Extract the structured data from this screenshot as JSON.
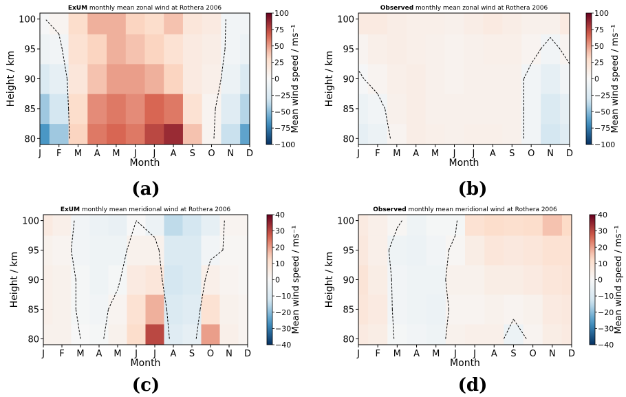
{
  "colors": {
    "neg_dark": "#053061",
    "neg_mid": "#4393c3",
    "neg_light": "#d1e5f0",
    "neutral": "#f7f7f7",
    "pos_light": "#fddbc7",
    "pos_mid": "#d6604d",
    "pos_dark": "#67001f",
    "contour": "#000000"
  },
  "chart_data": [
    {
      "type": "heatmap",
      "panel_label": "(a)",
      "title_bold": "ExUM",
      "title_rest": " monthly mean zonal wind at Rothera 2006",
      "xlabel": "Month",
      "ylabel": "Height / km",
      "cbar_label": "Mean wind speed / ms⁻¹",
      "x_ticks": [
        "J",
        "F",
        "M",
        "A",
        "M",
        "J",
        "J",
        "A",
        "S",
        "O",
        "N",
        "D"
      ],
      "y_ticks": [
        80,
        85,
        90,
        95,
        100
      ],
      "ylim": [
        79,
        101
      ],
      "heights": [
        80,
        85,
        90,
        95,
        100
      ],
      "cbar_ticks": [
        -100,
        -75,
        -50,
        -25,
        0,
        25,
        50,
        75,
        100
      ],
      "vlim": [
        -100,
        100
      ],
      "zero_contour": true,
      "values": [
        [
          -65,
          -45,
          -25,
          -8,
          -2
        ],
        [
          -45,
          -30,
          -15,
          -5,
          5
        ],
        [
          35,
          30,
          20,
          25,
          30
        ],
        [
          60,
          55,
          40,
          35,
          45
        ],
        [
          65,
          60,
          50,
          45,
          45
        ],
        [
          60,
          55,
          50,
          40,
          35
        ],
        [
          75,
          65,
          45,
          35,
          30
        ],
        [
          85,
          60,
          35,
          25,
          40
        ],
        [
          40,
          25,
          15,
          15,
          20
        ],
        [
          5,
          5,
          10,
          12,
          15
        ],
        [
          -35,
          -20,
          -10,
          -5,
          -5
        ],
        [
          -60,
          -40,
          -25,
          -10,
          -5
        ]
      ]
    },
    {
      "type": "heatmap",
      "panel_label": "(b)",
      "title_bold": "Observed",
      "title_rest": " monthly mean zonal wind at Rothera 2006",
      "xlabel": "Month",
      "ylabel": "Height / km",
      "cbar_label": "Mean wind speed / ms⁻¹",
      "x_ticks": [
        "J",
        "F",
        "M",
        "A",
        "M",
        "J",
        "J",
        "A",
        "S",
        "O",
        "N",
        "D"
      ],
      "y_ticks": [
        80,
        85,
        90,
        95,
        100
      ],
      "ylim": [
        79,
        101
      ],
      "heights": [
        80,
        85,
        90,
        95,
        100
      ],
      "cbar_ticks": [
        -100,
        -75,
        -50,
        -25,
        0,
        25,
        50,
        75,
        100
      ],
      "vlim": [
        -100,
        100
      ],
      "zero_contour": true,
      "values": [
        [
          -15,
          -10,
          -2,
          5,
          15
        ],
        [
          -10,
          -5,
          5,
          10,
          15
        ],
        [
          5,
          8,
          10,
          12,
          12
        ],
        [
          12,
          12,
          12,
          10,
          10
        ],
        [
          10,
          8,
          8,
          8,
          10
        ],
        [
          8,
          8,
          6,
          6,
          8
        ],
        [
          10,
          8,
          8,
          8,
          12
        ],
        [
          10,
          8,
          8,
          10,
          15
        ],
        [
          8,
          8,
          8,
          10,
          12
        ],
        [
          -5,
          -5,
          -5,
          5,
          8
        ],
        [
          -30,
          -25,
          -15,
          -5,
          8
        ],
        [
          -20,
          -15,
          -5,
          5,
          15
        ]
      ]
    },
    {
      "type": "heatmap",
      "panel_label": "(c)",
      "title_bold": "ExUM",
      "title_rest": " monthly mean meridional wind at Rothera 2006",
      "xlabel": "Month",
      "ylabel": "Height / km",
      "cbar_label": "Mean wind speed / ms⁻¹",
      "x_ticks": [
        "J",
        "F",
        "M",
        "A",
        "M",
        "J",
        "J",
        "A",
        "S",
        "O",
        "N",
        "D"
      ],
      "y_ticks": [
        80,
        85,
        90,
        95,
        100
      ],
      "ylim": [
        79,
        101
      ],
      "heights": [
        80,
        85,
        90,
        95,
        100
      ],
      "cbar_ticks": [
        -40,
        -30,
        -20,
        -10,
        0,
        10,
        20,
        30,
        40
      ],
      "vlim": [
        -40,
        40
      ],
      "zero_contour": true,
      "values": [
        [
          3,
          4,
          4,
          3,
          6
        ],
        [
          3,
          3,
          3,
          2,
          4
        ],
        [
          0,
          -1,
          -1,
          -2,
          -2
        ],
        [
          -1,
          -2,
          -3,
          -3,
          -4
        ],
        [
          3,
          2,
          -1,
          -3,
          -5
        ],
        [
          12,
          10,
          6,
          3,
          0
        ],
        [
          30,
          18,
          8,
          3,
          -4
        ],
        [
          -8,
          -10,
          -12,
          -10,
          -15
        ],
        [
          -6,
          -8,
          -10,
          -10,
          -12
        ],
        [
          20,
          10,
          4,
          -2,
          -6
        ],
        [
          4,
          3,
          2,
          1,
          2
        ],
        [
          2,
          2,
          1,
          1,
          2
        ]
      ]
    },
    {
      "type": "heatmap",
      "panel_label": "(d)",
      "title_bold": "Observed",
      "title_rest": " monthly mean meridional wind at Rothera 2006",
      "xlabel": "Month",
      "ylabel": "Height / km",
      "cbar_label": "Mean wind speed / ms⁻¹",
      "x_ticks": [
        "J",
        "F",
        "M",
        "A",
        "M",
        "J",
        "J",
        "A",
        "S",
        "O",
        "N",
        "D"
      ],
      "y_ticks": [
        80,
        85,
        90,
        95,
        100
      ],
      "ylim": [
        79,
        101
      ],
      "heights": [
        80,
        85,
        90,
        95,
        100
      ],
      "cbar_ticks": [
        -40,
        -30,
        -20,
        -10,
        0,
        10,
        20,
        30,
        40
      ],
      "vlim": [
        -40,
        40
      ],
      "zero_contour": true,
      "values": [
        [
          6,
          8,
          9,
          7,
          6
        ],
        [
          5,
          6,
          5,
          4,
          4
        ],
        [
          -1,
          -2,
          -2,
          -3,
          1
        ],
        [
          -2,
          -3,
          -3,
          -4,
          -3
        ],
        [
          -3,
          -4,
          -3,
          -2,
          -1
        ],
        [
          3,
          2,
          3,
          1,
          -1
        ],
        [
          4,
          2,
          3,
          5,
          10
        ],
        [
          4,
          3,
          5,
          8,
          12
        ],
        [
          -4,
          2,
          5,
          7,
          11
        ],
        [
          2,
          3,
          6,
          8,
          12
        ],
        [
          5,
          6,
          8,
          10,
          16
        ],
        [
          6,
          7,
          9,
          10,
          13
        ]
      ]
    }
  ]
}
